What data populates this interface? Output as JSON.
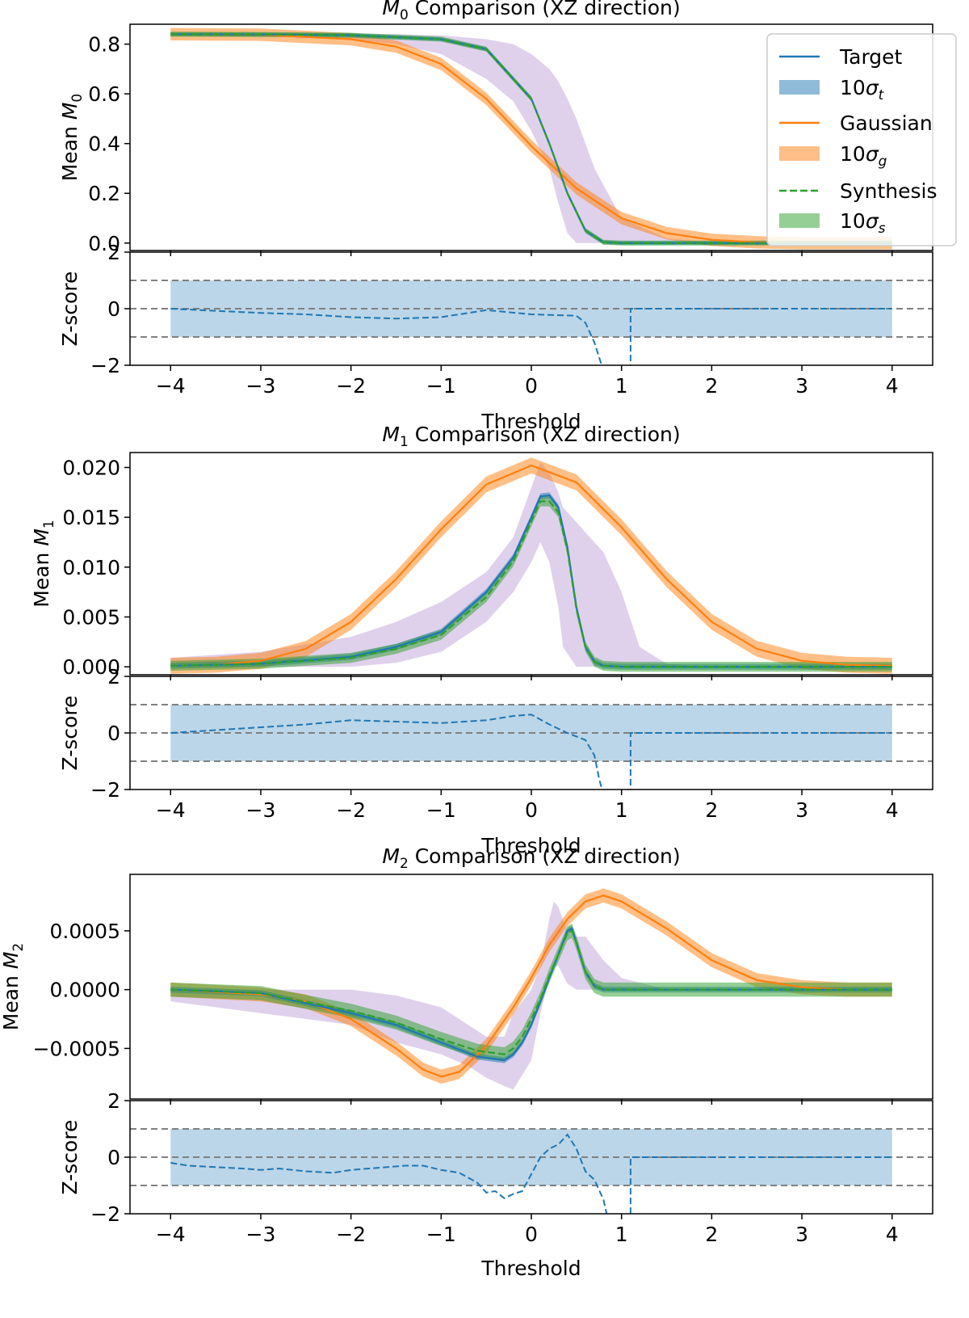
{
  "colors": {
    "target": "#1f77b4",
    "gaussian": "#ff7f0e",
    "synthesis": "#2ca02c",
    "envelope": "#9467bd",
    "reference": "#808080"
  },
  "legend": {
    "target": "Target",
    "target_band": "10σt",
    "gaussian": "Gaussian",
    "gaussian_band": "10σg",
    "synthesis": "Synthesis",
    "synthesis_band": "10σs"
  },
  "chart_data": [
    {
      "type": "line",
      "title": "M0 Comparison (XZ direction)",
      "title_symbol": "M",
      "title_sub": "0",
      "title_rest": " Comparison (XZ direction)",
      "xlabel": "Threshold",
      "ylabel": "Mean M0",
      "ylabel_prefix": "Mean ",
      "ylabel_symbol": "M",
      "ylabel_sub": "0",
      "xlim": [
        -4.45,
        4.45
      ],
      "ylim": [
        -0.03,
        0.88
      ],
      "xticks": [
        -4,
        -3,
        -2,
        -1,
        0,
        1,
        2,
        3,
        4
      ],
      "xtick_labels": [
        "−4",
        "−3",
        "−2",
        "−1",
        "0",
        "1",
        "2",
        "3",
        "4"
      ],
      "yticks": [
        0.0,
        0.2,
        0.4,
        0.6,
        0.8
      ],
      "ytick_labels": [
        "0.0",
        "0.2",
        "0.4",
        "0.6",
        "0.8"
      ],
      "series": [
        {
          "name": "Target",
          "x": [
            -4,
            -3,
            -2,
            -1,
            -0.5,
            0,
            0.2,
            0.4,
            0.6,
            0.8,
            1.0,
            2,
            3,
            4
          ],
          "y": [
            0.84,
            0.839,
            0.836,
            0.82,
            0.78,
            0.58,
            0.4,
            0.2,
            0.05,
            0.003,
            0.0,
            0.0,
            0.0,
            0.0
          ],
          "band": 0.008
        },
        {
          "name": "Gaussian",
          "x": [
            -4,
            -3,
            -2,
            -1.5,
            -1,
            -0.5,
            0,
            0.5,
            1,
            1.5,
            2,
            2.5,
            3,
            4
          ],
          "y": [
            0.84,
            0.838,
            0.82,
            0.79,
            0.72,
            0.58,
            0.39,
            0.22,
            0.1,
            0.04,
            0.013,
            0.003,
            0.0,
            0.0
          ],
          "band": 0.025
        },
        {
          "name": "Synthesis",
          "x": [
            -4,
            -3,
            -2,
            -1,
            -0.5,
            0,
            0.2,
            0.4,
            0.6,
            0.8,
            1.0,
            2,
            3,
            4
          ],
          "y": [
            0.84,
            0.839,
            0.836,
            0.82,
            0.78,
            0.58,
            0.4,
            0.2,
            0.05,
            0.003,
            0.0,
            0.0,
            0.0,
            0.0
          ],
          "band": 0.01
        }
      ],
      "envelope": {
        "x": [
          -4,
          -3,
          -2,
          -1.5,
          -1,
          -0.5,
          -0.2,
          0,
          0.2,
          0.3,
          0.4,
          0.5,
          0.7,
          1.0,
          1.5,
          2,
          4
        ],
        "upper": [
          0.845,
          0.845,
          0.842,
          0.84,
          0.835,
          0.82,
          0.8,
          0.76,
          0.7,
          0.65,
          0.58,
          0.5,
          0.3,
          0.1,
          0.02,
          0.0,
          0.0
        ],
        "lower": [
          0.835,
          0.83,
          0.82,
          0.8,
          0.76,
          0.66,
          0.57,
          0.45,
          0.3,
          0.16,
          0.04,
          0.0,
          0.0,
          0.0,
          0.0,
          0.0,
          0.0
        ]
      },
      "zscore": {
        "ylabel": "Z-score",
        "ylim": [
          -2,
          2
        ],
        "yticks": [
          -2,
          0,
          2
        ],
        "ytick_labels": [
          "−2",
          "0",
          "2"
        ],
        "band": [
          -1,
          1
        ],
        "reference_lines": [
          -1,
          0,
          1
        ],
        "x": [
          -4,
          -3,
          -2.5,
          -2,
          -1.5,
          -1,
          -0.5,
          0,
          0.5,
          0.6,
          0.7,
          0.8
        ],
        "y": [
          0.0,
          -0.15,
          -0.2,
          -0.3,
          -0.35,
          -0.3,
          -0.05,
          -0.2,
          -0.25,
          -0.5,
          -1.2,
          -2.2
        ],
        "x2": [
          1.1,
          1.1,
          4
        ],
        "y2": [
          -2.2,
          0.0,
          0.0
        ]
      }
    },
    {
      "type": "line",
      "title": "M1 Comparison (XZ direction)",
      "title_symbol": "M",
      "title_sub": "1",
      "title_rest": " Comparison (XZ direction)",
      "xlabel": "Threshold",
      "ylabel": "Mean M1",
      "ylabel_prefix": "Mean ",
      "ylabel_symbol": "M",
      "ylabel_sub": "1",
      "xlim": [
        -4.45,
        4.45
      ],
      "ylim": [
        -0.0008,
        0.0215
      ],
      "xticks": [
        -4,
        -3,
        -2,
        -1,
        0,
        1,
        2,
        3,
        4
      ],
      "xtick_labels": [
        "−4",
        "−3",
        "−2",
        "−1",
        "0",
        "1",
        "2",
        "3",
        "4"
      ],
      "yticks": [
        0.0,
        0.005,
        0.01,
        0.015,
        0.02
      ],
      "ytick_labels": [
        "0.000",
        "0.005",
        "0.010",
        "0.015",
        "0.020"
      ],
      "series": [
        {
          "name": "Target",
          "x": [
            -4,
            -3,
            -2,
            -1.5,
            -1,
            -0.5,
            -0.2,
            0,
            0.1,
            0.2,
            0.3,
            0.4,
            0.5,
            0.6,
            0.7,
            0.8,
            1.0,
            2,
            4
          ],
          "y": [
            0.0001,
            0.0003,
            0.001,
            0.002,
            0.0035,
            0.0075,
            0.011,
            0.015,
            0.0171,
            0.0172,
            0.016,
            0.012,
            0.006,
            0.002,
            0.0005,
            0.0001,
            0.0,
            0.0,
            0.0
          ],
          "band": 0.0003
        },
        {
          "name": "Gaussian",
          "x": [
            -4,
            -3.5,
            -3,
            -2.5,
            -2,
            -1.5,
            -1,
            -0.5,
            0,
            0.5,
            1,
            1.5,
            2,
            2.5,
            3,
            3.5,
            4
          ],
          "y": [
            0.0001,
            0.0002,
            0.0006,
            0.0018,
            0.0045,
            0.0088,
            0.0138,
            0.0183,
            0.0202,
            0.0185,
            0.014,
            0.0088,
            0.0045,
            0.0018,
            0.0006,
            0.0002,
            0.0001
          ],
          "band": 0.0008
        },
        {
          "name": "Synthesis",
          "x": [
            -4,
            -3,
            -2,
            -1.5,
            -1,
            -0.5,
            -0.2,
            0,
            0.1,
            0.2,
            0.3,
            0.4,
            0.5,
            0.6,
            0.7,
            0.8,
            1.0,
            2,
            4
          ],
          "y": [
            0.0001,
            0.0003,
            0.0009,
            0.0018,
            0.0032,
            0.007,
            0.0106,
            0.0146,
            0.0166,
            0.0166,
            0.0155,
            0.0117,
            0.0058,
            0.002,
            0.0005,
            0.0001,
            0.0,
            0.0,
            0.0
          ],
          "band": 0.0005
        }
      ],
      "envelope": {
        "x": [
          -4,
          -3,
          -2,
          -1.5,
          -1,
          -0.5,
          -0.2,
          0,
          0.1,
          0.2,
          0.3,
          0.35,
          0.5,
          0.6,
          0.8,
          1.0,
          1.2,
          1.5,
          2,
          4
        ],
        "upper": [
          0.0009,
          0.0015,
          0.003,
          0.0045,
          0.0065,
          0.0095,
          0.013,
          0.018,
          0.0205,
          0.0195,
          0.0175,
          0.016,
          0.0145,
          0.0135,
          0.0115,
          0.0075,
          0.002,
          0.0003,
          0.0,
          0.0
        ],
        "lower": [
          0.0,
          0.0,
          0.0,
          0.0004,
          0.0015,
          0.0045,
          0.0075,
          0.0105,
          0.0125,
          0.0105,
          0.006,
          0.002,
          0.0,
          0.0,
          0.0,
          0.0,
          0.0,
          0.0,
          0.0,
          0.0
        ]
      },
      "zscore": {
        "ylabel": "Z-score",
        "ylim": [
          -2,
          2
        ],
        "yticks": [
          -2,
          0,
          2
        ],
        "ytick_labels": [
          "−2",
          "0",
          "2"
        ],
        "band": [
          -1,
          1
        ],
        "reference_lines": [
          -1,
          0,
          1
        ],
        "x": [
          -4,
          -3.5,
          -3,
          -2.5,
          -2,
          -1.5,
          -1,
          -0.5,
          -0.2,
          0,
          0.2,
          0.4,
          0.6,
          0.7,
          0.75,
          0.8
        ],
        "y": [
          0.0,
          0.1,
          0.2,
          0.3,
          0.45,
          0.4,
          0.35,
          0.45,
          0.6,
          0.65,
          0.3,
          0.0,
          -0.25,
          -0.8,
          -1.6,
          -2.2
        ],
        "x2": [
          1.1,
          1.1,
          4
        ],
        "y2": [
          -2.2,
          0.0,
          0.0
        ]
      }
    },
    {
      "type": "line",
      "title": "M2 Comparison (XZ direction)",
      "title_symbol": "M",
      "title_sub": "2",
      "title_rest": " Comparison (XZ direction)",
      "xlabel": "Threshold",
      "ylabel": "Mean M2",
      "ylabel_prefix": "Mean ",
      "ylabel_symbol": "M",
      "ylabel_sub": "2",
      "xlim": [
        -4.45,
        4.45
      ],
      "ylim": [
        -0.00093,
        0.00098
      ],
      "xticks": [
        -4,
        -3,
        -2,
        -1,
        0,
        1,
        2,
        3,
        4
      ],
      "xtick_labels": [
        "−4",
        "−3",
        "−2",
        "−1",
        "0",
        "1",
        "2",
        "3",
        "4"
      ],
      "yticks": [
        -0.0005,
        0.0,
        0.0005
      ],
      "ytick_labels": [
        "−0.0005",
        "0.0000",
        "0.0005"
      ],
      "series": [
        {
          "name": "Target",
          "x": [
            -4,
            -3,
            -2,
            -1.5,
            -1,
            -0.6,
            -0.3,
            -0.2,
            -0.1,
            0,
            0.1,
            0.2,
            0.3,
            0.4,
            0.45,
            0.5,
            0.6,
            0.7,
            0.8,
            1.0,
            2,
            4
          ],
          "y": [
            0.0,
            -3e-05,
            -0.0002,
            -0.0003,
            -0.00045,
            -0.00057,
            -0.0006,
            -0.00055,
            -0.00045,
            -0.0003,
            -0.0001,
            0.0001,
            0.0003,
            0.0005,
            0.00052,
            0.0004,
            0.00015,
            3e-05,
            0.0,
            0.0,
            0.0,
            0.0
          ],
          "band": 2.5e-05
        },
        {
          "name": "Gaussian",
          "x": [
            -4,
            -3,
            -2.5,
            -2,
            -1.5,
            -1.2,
            -1,
            -0.8,
            -0.5,
            -0.2,
            0,
            0.2,
            0.4,
            0.6,
            0.8,
            1.0,
            1.5,
            2,
            2.5,
            3,
            3.5,
            4
          ],
          "y": [
            0.0,
            -4e-05,
            -0.0001,
            -0.00025,
            -0.0005,
            -0.00068,
            -0.00074,
            -0.0007,
            -0.00048,
            -0.00015,
            0.0001,
            0.00038,
            0.0006,
            0.00075,
            0.0008,
            0.00075,
            0.00052,
            0.00025,
            8e-05,
            2e-05,
            0.0,
            0.0
          ],
          "band": 6e-05
        },
        {
          "name": "Synthesis",
          "x": [
            -4,
            -3,
            -2,
            -1.5,
            -1,
            -0.6,
            -0.3,
            -0.2,
            -0.1,
            0,
            0.1,
            0.2,
            0.3,
            0.4,
            0.45,
            0.5,
            0.6,
            0.7,
            0.8,
            1.0,
            2,
            4
          ],
          "y": [
            0.0,
            -3e-05,
            -0.00018,
            -0.00028,
            -0.00042,
            -0.00052,
            -0.00055,
            -0.0005,
            -0.0004,
            -0.00025,
            -8e-05,
            0.00012,
            0.0003,
            0.00048,
            0.0005,
            0.0004,
            0.00015,
            3e-05,
            0.0,
            0.0,
            0.0,
            0.0
          ],
          "band": 6e-05
        }
      ],
      "envelope": {
        "x": [
          -4,
          -3,
          -2,
          -1.5,
          -1,
          -0.7,
          -0.5,
          -0.3,
          -0.2,
          0,
          0.1,
          0.2,
          0.25,
          0.3,
          0.4,
          0.5,
          0.6,
          0.7,
          0.8,
          1.0,
          1.5,
          4
        ],
        "upper": [
          0.0,
          0.0,
          0.0,
          -5e-05,
          -0.00015,
          -0.0003,
          -0.0004,
          -0.0004,
          -0.0002,
          0.0,
          0.0002,
          0.0006,
          0.00075,
          0.0007,
          0.0005,
          0.00045,
          0.00045,
          0.00035,
          0.00025,
          0.0001,
          0.0,
          0.0
        ],
        "lower": [
          -0.0001,
          -0.0002,
          -0.0003,
          -0.00045,
          -0.00055,
          -0.00065,
          -0.00075,
          -0.00082,
          -0.00085,
          -0.0006,
          -0.0002,
          0.0001,
          0.0002,
          0.0002,
          5e-05,
          0.0,
          0.0,
          0.0,
          0.0,
          0.0,
          0.0,
          0.0
        ]
      },
      "zscore": {
        "ylabel": "Z-score",
        "ylim": [
          -2,
          2
        ],
        "yticks": [
          -2,
          0,
          2
        ],
        "ytick_labels": [
          "−2",
          "0",
          "2"
        ],
        "band": [
          -1,
          1
        ],
        "reference_lines": [
          -1,
          0,
          1
        ],
        "x": [
          -4,
          -3.8,
          -3.5,
          -3.2,
          -3,
          -2.8,
          -2.5,
          -2.2,
          -2,
          -1.8,
          -1.6,
          -1.4,
          -1.2,
          -1.0,
          -0.8,
          -0.6,
          -0.5,
          -0.4,
          -0.3,
          -0.2,
          -0.1,
          0,
          0.1,
          0.2,
          0.3,
          0.4,
          0.5,
          0.6,
          0.7,
          0.8
        ],
        "y": [
          -0.2,
          -0.3,
          -0.35,
          -0.4,
          -0.45,
          -0.4,
          -0.5,
          -0.55,
          -0.45,
          -0.4,
          -0.35,
          -0.3,
          -0.3,
          -0.45,
          -0.55,
          -0.9,
          -1.25,
          -1.2,
          -1.45,
          -1.3,
          -1.2,
          -0.6,
          0.0,
          0.3,
          0.45,
          0.8,
          0.3,
          -0.5,
          -0.8,
          -1.5
        ],
        "x2": [
          0.8,
          0.85,
          1.1,
          1.1,
          4
        ],
        "y2": [
          -1.5,
          -2.2,
          -2.2,
          0.0,
          0.0
        ]
      }
    }
  ]
}
